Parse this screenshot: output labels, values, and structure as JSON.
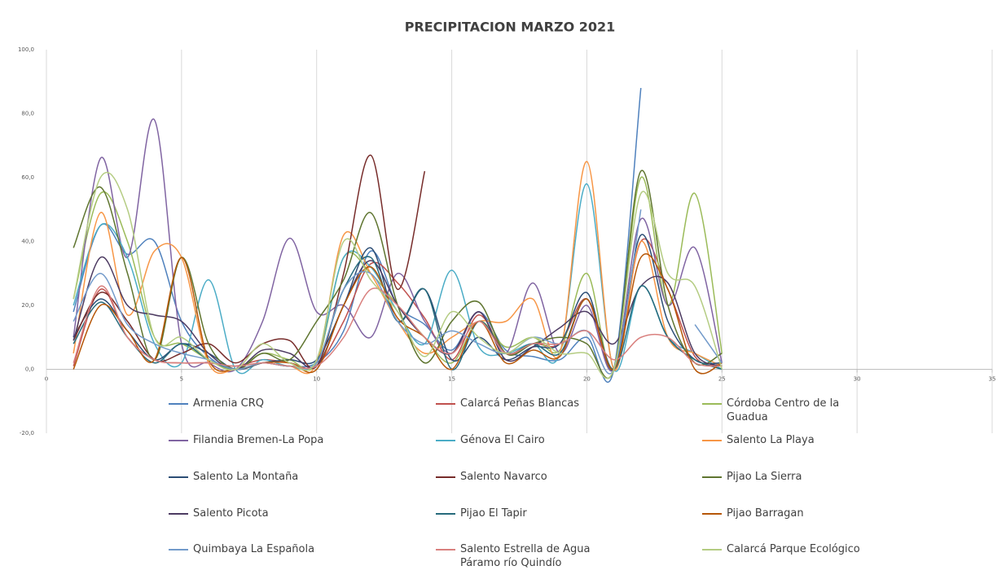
{
  "chart_data": {
    "type": "line",
    "title": "PRECIPITACION MARZO 2021",
    "x": [
      1,
      2,
      3,
      4,
      5,
      6,
      7,
      8,
      9,
      10,
      11,
      12,
      13,
      14,
      15,
      16,
      17,
      18,
      19,
      20,
      21,
      22,
      23,
      24,
      25
    ],
    "xlim": [
      0,
      35
    ],
    "xticks": [
      0,
      5,
      10,
      15,
      20,
      25,
      30,
      35
    ],
    "ylim": [
      -20,
      100
    ],
    "yticks": [
      {
        "value": -20,
        "label": "-20,0"
      },
      {
        "value": 0,
        "label": "0,0"
      },
      {
        "value": 20,
        "label": "20,0"
      },
      {
        "value": 40,
        "label": "40,0"
      },
      {
        "value": 60,
        "label": "60,0"
      },
      {
        "value": 80,
        "label": "80,0"
      },
      {
        "value": 100,
        "label": "100,0"
      }
    ],
    "grid": "x",
    "smooth": true,
    "legend": "bottom",
    "series": [
      {
        "name": "Armenia CRQ",
        "color": "#4f81bd",
        "values": [
          18,
          45,
          36,
          40,
          15,
          4,
          0,
          2,
          1,
          2,
          12,
          37,
          20,
          14,
          6,
          18,
          6,
          4,
          3,
          10,
          0,
          88,
          null,
          null,
          null
        ]
      },
      {
        "name": "Calarcá Peñas Blancas",
        "color": "#c0504d",
        "values": [
          1,
          25,
          10,
          3,
          2,
          2,
          1,
          3,
          2,
          1,
          15,
          33,
          27,
          16,
          3,
          17,
          5,
          8,
          8,
          22,
          0,
          40,
          25,
          4,
          1
        ]
      },
      {
        "name": "Córdoba Centro de la Guadua",
        "color": "#9bbb59",
        "values": [
          22,
          55,
          40,
          10,
          8,
          3,
          0,
          5,
          3,
          2,
          35,
          30,
          20,
          10,
          2,
          15,
          7,
          10,
          6,
          30,
          0,
          60,
          20,
          55,
          5
        ]
      },
      {
        "name": "Filandia Bremen-La Popa",
        "color": "#8064a2",
        "values": [
          10,
          66,
          35,
          78,
          8,
          2,
          0,
          15,
          41,
          18,
          20,
          10,
          30,
          15,
          5,
          18,
          5,
          27,
          5,
          20,
          0,
          47,
          20,
          38,
          2
        ]
      },
      {
        "name": "Génova El Cairo",
        "color": "#4bacc6",
        "values": [
          20,
          45,
          35,
          8,
          2,
          28,
          0,
          3,
          1,
          3,
          35,
          32,
          18,
          8,
          31,
          7,
          5,
          8,
          5,
          58,
          0,
          26,
          10,
          5,
          0
        ]
      },
      {
        "name": "Salento  La Playa",
        "color": "#f79646",
        "values": [
          5,
          49,
          17,
          37,
          35,
          2,
          0,
          2,
          1,
          2,
          42,
          30,
          15,
          5,
          10,
          15,
          15,
          22,
          5,
          65,
          0,
          40,
          10,
          5,
          1
        ]
      },
      {
        "name": "Salento  La Montaña",
        "color": "#2c4d75",
        "values": [
          10,
          22,
          12,
          3,
          8,
          5,
          0,
          2,
          3,
          3,
          20,
          38,
          15,
          25,
          3,
          10,
          3,
          7,
          8,
          24,
          0,
          42,
          15,
          3,
          2
        ]
      },
      {
        "name": "Salento Navarco",
        "color": "#772c2a",
        "values": [
          9,
          24,
          15,
          3,
          5,
          8,
          2,
          8,
          9,
          1,
          30,
          67,
          25,
          62,
          null,
          null,
          null,
          null,
          null,
          null,
          null,
          null,
          null,
          null,
          null
        ]
      },
      {
        "name": "Pijao  La Sierra",
        "color": "#5f7530",
        "values": [
          38,
          57,
          30,
          3,
          35,
          8,
          0,
          5,
          3,
          15,
          28,
          49,
          20,
          2,
          15,
          21,
          5,
          8,
          10,
          8,
          0,
          62,
          20,
          2,
          5
        ]
      },
      {
        "name": "Salento  Picota",
        "color": "#4d3b62",
        "values": [
          9,
          35,
          20,
          17,
          15,
          5,
          0,
          6,
          5,
          1,
          20,
          34,
          20,
          10,
          5,
          18,
          3,
          7,
          13,
          18,
          8,
          26,
          27,
          5,
          1
        ]
      },
      {
        "name": "Pijao El Tapir",
        "color": "#276a7c",
        "values": [
          8,
          21,
          10,
          2,
          8,
          3,
          0,
          2,
          1,
          2,
          25,
          35,
          15,
          25,
          0,
          15,
          5,
          8,
          5,
          22,
          0,
          26,
          10,
          3,
          0
        ]
      },
      {
        "name": "Pijao Barragan",
        "color": "#b65708",
        "values": [
          0,
          20,
          12,
          3,
          35,
          3,
          0,
          2,
          2,
          0,
          20,
          32,
          16,
          10,
          0,
          15,
          2,
          6,
          4,
          22,
          0,
          35,
          25,
          0,
          2
        ]
      },
      {
        "name": "Quimbaya La Española",
        "color": "#729aca",
        "values": [
          15,
          30,
          14,
          8,
          5,
          3,
          0,
          2,
          1,
          2,
          25,
          30,
          15,
          8,
          12,
          8,
          5,
          10,
          8,
          12,
          0,
          50,
          null,
          14,
          2
        ]
      },
      {
        "name": "Salento Estrella de Agua Páramo río Quindío",
        "color": "#d9807e",
        "values": [
          2,
          26,
          10,
          3,
          2,
          2,
          1,
          2,
          1,
          1,
          10,
          25,
          20,
          10,
          5,
          15,
          5,
          8,
          8,
          12,
          3,
          10,
          10,
          2,
          1
        ]
      },
      {
        "name": "Calarcá  Parque Ecológico",
        "color": "#b4cc82",
        "values": [
          22,
          60,
          50,
          10,
          10,
          3,
          0,
          8,
          2,
          3,
          40,
          28,
          18,
          4,
          18,
          10,
          5,
          10,
          5,
          5,
          0,
          55,
          30,
          26,
          0
        ]
      }
    ]
  }
}
